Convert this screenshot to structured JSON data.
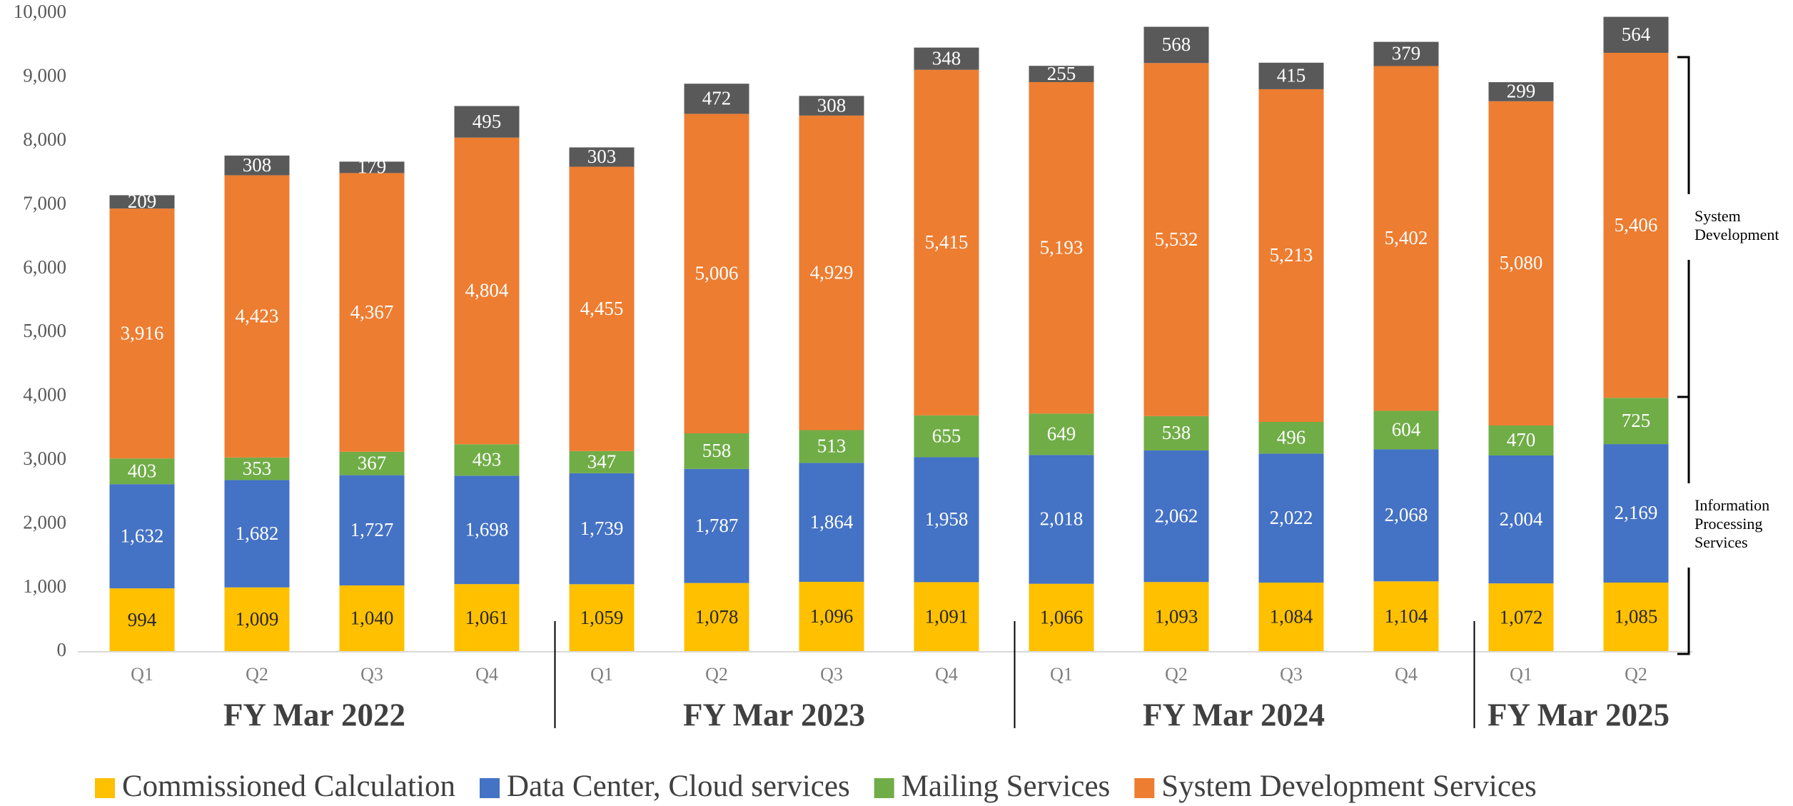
{
  "chart_data": {
    "type": "stacked_bar",
    "groups": [
      {
        "label": "FY Mar 2022",
        "categories": [
          "Q1",
          "Q2",
          "Q3",
          "Q4"
        ]
      },
      {
        "label": "FY Mar 2023",
        "categories": [
          "Q1",
          "Q2",
          "Q3",
          "Q4"
        ]
      },
      {
        "label": "FY Mar 2024",
        "categories": [
          "Q1",
          "Q2",
          "Q3",
          "Q4"
        ]
      },
      {
        "label": "FY Mar 2025",
        "categories": [
          "Q1",
          "Q2"
        ]
      }
    ],
    "series": [
      {
        "name": "Commissioned Calculation",
        "color": "#ffc000",
        "label_color": "#262626",
        "values": [
          994,
          1009,
          1040,
          1061,
          1059,
          1078,
          1096,
          1091,
          1066,
          1093,
          1084,
          1104,
          1072,
          1085
        ],
        "value_labels": [
          "994",
          "1,009",
          "1,040",
          "1,061",
          "1,059",
          "1,078",
          "1,096",
          "1,091",
          "1,066",
          "1,093",
          "1,084",
          "1,104",
          "1,072",
          "1,085"
        ]
      },
      {
        "name": "Data Center, Cloud services",
        "color": "#4472c4",
        "label_color": "#ffffff",
        "values": [
          1632,
          1682,
          1727,
          1698,
          1739,
          1787,
          1864,
          1958,
          2018,
          2062,
          2022,
          2068,
          2004,
          2169
        ],
        "value_labels": [
          "1,632",
          "1,682",
          "1,727",
          "1,698",
          "1,739",
          "1,787",
          "1,864",
          "1,958",
          "2,018",
          "2,062",
          "2,022",
          "2,068",
          "2,004",
          "2,169"
        ]
      },
      {
        "name": "Mailing Services",
        "color": "#70ad47",
        "label_color": "#ffffff",
        "values": [
          403,
          353,
          367,
          493,
          347,
          558,
          513,
          655,
          649,
          538,
          496,
          604,
          470,
          725
        ]
      },
      {
        "name": "System Development Services",
        "color": "#ed7d31",
        "label_color": "#ffffff",
        "values": [
          3916,
          4423,
          4367,
          4804,
          4455,
          5006,
          4929,
          5415,
          5193,
          5532,
          5213,
          5402,
          5080,
          5406
        ],
        "value_labels": [
          "3,916",
          "4,423",
          "4,367",
          "4,804",
          "4,455",
          "5,006",
          "4,929",
          "5,415",
          "5,193",
          "5,532",
          "5,213",
          "5,402",
          "5,080",
          "5,406"
        ]
      },
      {
        "color": "#595959",
        "label_color": "#ffffff",
        "values": [
          209,
          308,
          179,
          495,
          303,
          472,
          308,
          348,
          255,
          568,
          415,
          379,
          299,
          564
        ]
      }
    ],
    "ylim": [
      0,
      10000
    ],
    "yticks": [
      0,
      {
        "value": 1000,
        "label": "1,000"
      },
      {
        "value": 2000,
        "label": "2,000"
      },
      {
        "value": 3000,
        "label": "3,000"
      },
      {
        "value": 4000,
        "label": "4,000"
      },
      {
        "value": 5000,
        "label": "5,000"
      },
      {
        "value": 6000,
        "label": "6,000"
      },
      {
        "value": 7000,
        "label": "7,000"
      },
      {
        "value": 8000,
        "label": "8,000"
      },
      {
        "value": 9000,
        "label": "9,000"
      },
      {
        "value": 10000,
        "label": "10,000"
      }
    ],
    "legend": "bottom",
    "annotations": [
      {
        "lines": [
          "System",
          "Development"
        ]
      },
      {
        "lines": [
          "Information",
          "Processing",
          "Services"
        ]
      }
    ]
  }
}
